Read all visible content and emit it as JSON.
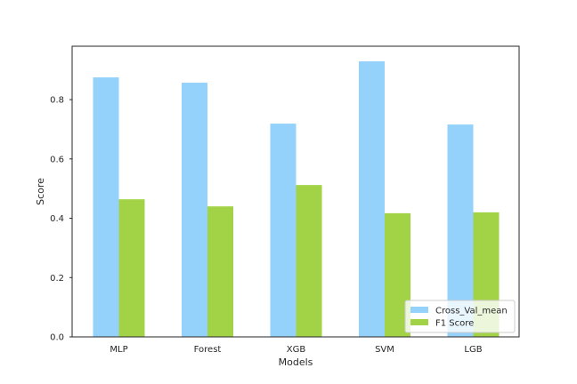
{
  "chart_data": {
    "type": "bar",
    "categories": [
      "MLP",
      "Forest",
      "XGB",
      "SVM",
      "LGB"
    ],
    "series": [
      {
        "name": "Cross_Val_mean",
        "values": [
          0.875,
          0.857,
          0.719,
          0.929,
          0.716
        ],
        "color": "#94d2fb"
      },
      {
        "name": "F1 Score",
        "values": [
          0.464,
          0.44,
          0.512,
          0.417,
          0.42
        ],
        "color": "#a2d246"
      }
    ],
    "title": "",
    "xlabel": "Models",
    "ylabel": "Score",
    "ylim": [
      0,
      0.98
    ],
    "yticks": [
      0.0,
      0.2,
      0.4,
      0.6,
      0.8
    ],
    "ytick_labels": [
      "0.0",
      "0.2",
      "0.4",
      "0.6",
      "0.8"
    ],
    "grid": false,
    "legend_position": "bottom-right"
  }
}
